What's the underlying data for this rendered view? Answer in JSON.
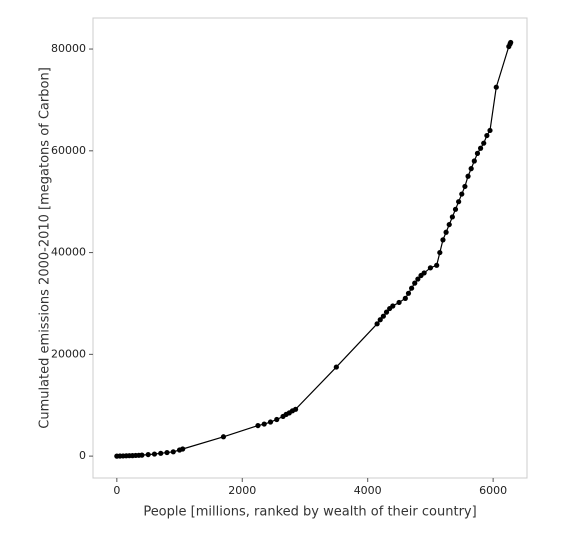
{
  "chart_data": {
    "type": "line",
    "x_label": "People [millions, ranked by wealth of their country]",
    "y_label": "Cumulated emissions 2000-2010 [megatons of Carbon]",
    "x": [
      0,
      50,
      100,
      150,
      200,
      250,
      300,
      350,
      400,
      500,
      600,
      700,
      800,
      900,
      1000,
      1050,
      1700,
      2250,
      2350,
      2450,
      2550,
      2650,
      2700,
      2750,
      2800,
      2850,
      3500,
      4150,
      4200,
      4250,
      4300,
      4350,
      4400,
      4500,
      4600,
      4650,
      4700,
      4750,
      4800,
      4850,
      4900,
      5000,
      5100,
      5150,
      5200,
      5250,
      5300,
      5350,
      5400,
      5450,
      5500,
      5550,
      5600,
      5650,
      5700,
      5750,
      5800,
      5850,
      5900,
      5950,
      6050,
      6250,
      6270,
      6280
    ],
    "values": [
      0,
      20,
      40,
      60,
      80,
      100,
      130,
      160,
      200,
      300,
      400,
      550,
      700,
      850,
      1200,
      1400,
      3800,
      6000,
      6300,
      6700,
      7200,
      7800,
      8200,
      8500,
      8900,
      9200,
      17500,
      26000,
      26800,
      27500,
      28300,
      29000,
      29500,
      30200,
      31000,
      32000,
      33000,
      34000,
      34800,
      35500,
      36000,
      37000,
      37500,
      40000,
      42500,
      44000,
      45500,
      47000,
      48500,
      50000,
      51500,
      53000,
      55000,
      56500,
      58000,
      59500,
      60500,
      61500,
      63000,
      64000,
      72500,
      80500,
      81000,
      81300
    ],
    "color": "#000000",
    "markers": true,
    "xlim": [
      -380,
      6540
    ],
    "xticks": [
      0,
      2000,
      4000,
      6000
    ],
    "ylim": [
      -4300,
      86100
    ],
    "yticks": [
      0,
      20000,
      40000,
      60000,
      80000
    ],
    "grid": false
  }
}
